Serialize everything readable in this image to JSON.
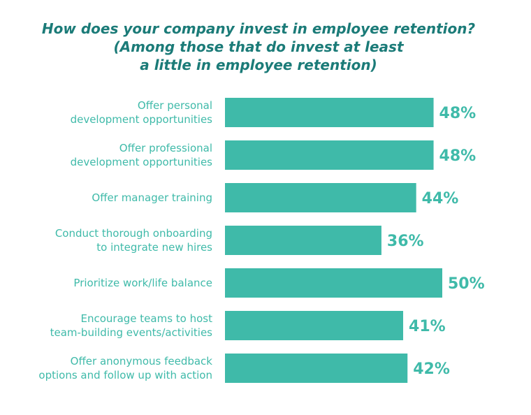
{
  "chart_data": {
    "type": "bar",
    "orientation": "horizontal",
    "title_lines": [
      "How does your company invest in employee retention?",
      "(Among those that do invest at least",
      "a little in employee retention)"
    ],
    "categories": [
      [
        "Offer personal",
        "development opportunities"
      ],
      [
        "Offer professional",
        "development opportunities"
      ],
      [
        "Offer manager training"
      ],
      [
        "Conduct thorough onboarding",
        "to integrate new hires"
      ],
      [
        "Prioritize work/life balance"
      ],
      [
        "Encourage teams to host",
        "team-building events/activities"
      ],
      [
        "Offer anonymous feedback",
        "options and follow up with action"
      ]
    ],
    "values": [
      48,
      48,
      44,
      36,
      50,
      41,
      42
    ],
    "value_suffix": "%",
    "bar_color": "#3fbaa9",
    "title_color": "#1b7b78",
    "xlim": [
      0,
      50
    ],
    "grid": false,
    "legend": "none"
  }
}
